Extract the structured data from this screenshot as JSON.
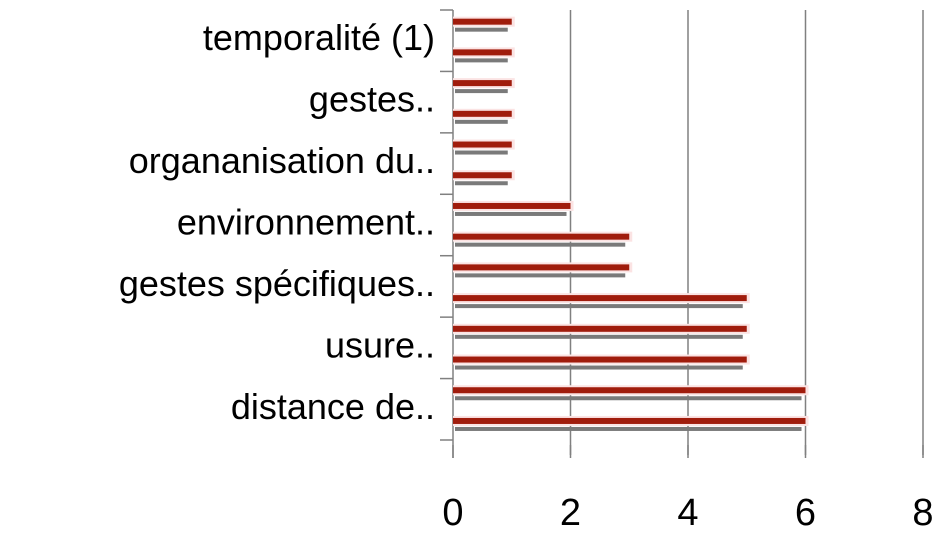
{
  "chart_data": {
    "type": "bar",
    "orientation": "horizontal",
    "categories": [
      "temporalité (1)",
      "gestes..",
      "organanisation du..",
      "environnement..",
      "gestes spécifiques..",
      "usure..",
      "distance de.."
    ],
    "series": [
      {
        "color": "#a01c0c",
        "values": [
          1,
          1,
          1,
          2,
          3,
          5,
          6
        ]
      },
      {
        "color": "#a01c0c",
        "values": [
          1,
          1,
          1,
          3,
          5,
          5,
          6
        ]
      }
    ],
    "xlim": [
      0,
      8
    ],
    "xticks": [
      0,
      2,
      4,
      6,
      8
    ],
    "grid": true
  }
}
